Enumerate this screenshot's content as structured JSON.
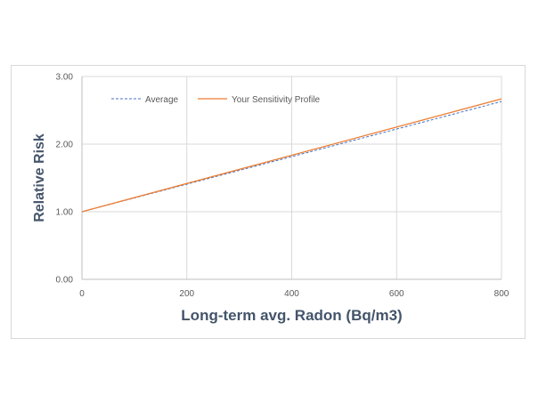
{
  "chart_data": {
    "type": "line",
    "title": "",
    "xlabel": "Long-term avg. Radon (Bq/m3)",
    "ylabel": "Relative Risk",
    "xlim": [
      0,
      800
    ],
    "ylim": [
      0,
      3
    ],
    "x_ticks": [
      0,
      200,
      400,
      600,
      800
    ],
    "x_tick_labels": [
      "0",
      "200",
      "400",
      "600",
      "800"
    ],
    "y_ticks": [
      0,
      1,
      2,
      3
    ],
    "y_tick_labels": [
      "0.00",
      "1.00",
      "2.00",
      "3.00"
    ],
    "grid": true,
    "legend_position": "top-left inside",
    "series": [
      {
        "name": "Average",
        "style": "dashed",
        "color": "#4472c4",
        "x": [
          0,
          800
        ],
        "y": [
          1.0,
          2.63
        ]
      },
      {
        "name": "Your Sensitivity Profile",
        "style": "solid",
        "color": "#ed7d31",
        "x": [
          0,
          800
        ],
        "y": [
          1.0,
          2.67
        ]
      }
    ]
  }
}
